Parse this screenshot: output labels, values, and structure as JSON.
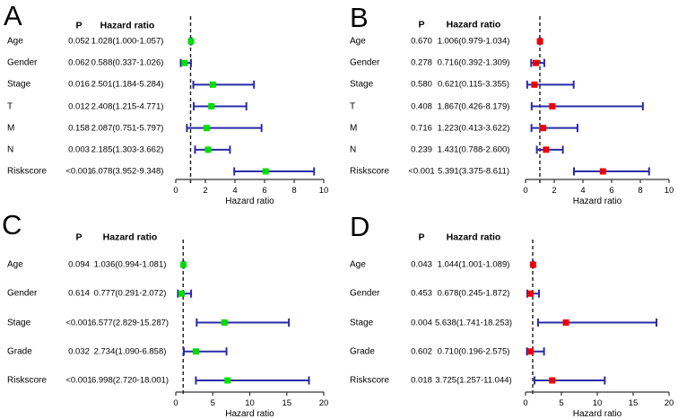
{
  "figure": {
    "background": "#ffffff",
    "text_color": "#000000",
    "error_bar_color": "#2a2aa8",
    "reference_line_color": "#1a1a1a",
    "axis_color": "#333333"
  },
  "chart_data": [
    {
      "type": "forest",
      "panel": "A",
      "marker_color": "#00dd00",
      "error_bar_color": "#2a2aa8",
      "col_headers": {
        "p": "P",
        "hr": "Hazard ratio"
      },
      "xlabel": "Hazard ratio",
      "xlim": [
        0,
        10
      ],
      "xticks": [
        0,
        2,
        4,
        6,
        8,
        10
      ],
      "reference_line": 1,
      "rows": [
        {
          "label": "Age",
          "p": "0.052",
          "hr_text": "1.028(1.000-1.057)",
          "hr": 1.028,
          "low": 1.0,
          "high": 1.057
        },
        {
          "label": "Gender",
          "p": "0.062",
          "hr_text": "0.588(0.337-1.026)",
          "hr": 0.588,
          "low": 0.337,
          "high": 1.026
        },
        {
          "label": "Stage",
          "p": "0.016",
          "hr_text": "2.501(1.184-5.284)",
          "hr": 2.501,
          "low": 1.184,
          "high": 5.284
        },
        {
          "label": "T",
          "p": "0.012",
          "hr_text": "2.408(1.215-4.771)",
          "hr": 2.408,
          "low": 1.215,
          "high": 4.771
        },
        {
          "label": "M",
          "p": "0.158",
          "hr_text": "2.087(0.751-5.797)",
          "hr": 2.087,
          "low": 0.751,
          "high": 5.797
        },
        {
          "label": "N",
          "p": "0.003",
          "hr_text": "2.185(1.303-3.662)",
          "hr": 2.185,
          "low": 1.303,
          "high": 3.662
        },
        {
          "label": "Riskscore",
          "p": "<0.001",
          "hr_text": "6.078(3.952-9.348)",
          "hr": 6.078,
          "low": 3.952,
          "high": 9.348
        }
      ]
    },
    {
      "type": "forest",
      "panel": "B",
      "marker_color": "#ee0000",
      "error_bar_color": "#2a2aa8",
      "col_headers": {
        "p": "P",
        "hr": "Hazard ratio"
      },
      "xlabel": "Hazard ratio",
      "xlim": [
        0,
        10
      ],
      "xticks": [
        0,
        2,
        4,
        6,
        8,
        10
      ],
      "reference_line": 1,
      "rows": [
        {
          "label": "Age",
          "p": "0.670",
          "hr_text": "1.006(0.979-1.034)",
          "hr": 1.006,
          "low": 0.979,
          "high": 1.034
        },
        {
          "label": "Gender",
          "p": "0.278",
          "hr_text": "0.716(0.392-1.309)",
          "hr": 0.716,
          "low": 0.392,
          "high": 1.309
        },
        {
          "label": "Stage",
          "p": "0.580",
          "hr_text": "0.621(0.115-3.355)",
          "hr": 0.621,
          "low": 0.115,
          "high": 3.355
        },
        {
          "label": "T",
          "p": "0.408",
          "hr_text": "1.867(0.426-8.179)",
          "hr": 1.867,
          "low": 0.426,
          "high": 8.179
        },
        {
          "label": "M",
          "p": "0.716",
          "hr_text": "1.223(0.413-3.622)",
          "hr": 1.223,
          "low": 0.413,
          "high": 3.622
        },
        {
          "label": "N",
          "p": "0.239",
          "hr_text": "1.431(0.788-2.600)",
          "hr": 1.431,
          "low": 0.788,
          "high": 2.6
        },
        {
          "label": "Riskscore",
          "p": "<0.001",
          "hr_text": "5.391(3.375-8.611)",
          "hr": 5.391,
          "low": 3.375,
          "high": 8.611
        }
      ]
    },
    {
      "type": "forest",
      "panel": "C",
      "marker_color": "#00dd00",
      "error_bar_color": "#2a2aa8",
      "col_headers": {
        "p": "P",
        "hr": "Hazard ratio"
      },
      "xlabel": "Hazard ratio",
      "xlim": [
        0,
        20
      ],
      "xticks": [
        0,
        5,
        10,
        15,
        20
      ],
      "reference_line": 1,
      "rows": [
        {
          "label": "Age",
          "p": "0.094",
          "hr_text": "1.036(0.994-1.081)",
          "hr": 1.036,
          "low": 0.994,
          "high": 1.081
        },
        {
          "label": "Gender",
          "p": "0.614",
          "hr_text": "0.777(0.291-2.072)",
          "hr": 0.777,
          "low": 0.291,
          "high": 2.072
        },
        {
          "label": "Stage",
          "p": "<0.001",
          "hr_text": "6.577(2.829-15.287)",
          "hr": 6.577,
          "low": 2.829,
          "high": 15.287
        },
        {
          "label": "Grade",
          "p": "0.032",
          "hr_text": "2.734(1.090-6.858)",
          "hr": 2.734,
          "low": 1.09,
          "high": 6.858
        },
        {
          "label": "Riskscore",
          "p": "<0.001",
          "hr_text": "6.998(2.720-18.001)",
          "hr": 6.998,
          "low": 2.72,
          "high": 18.001
        }
      ]
    },
    {
      "type": "forest",
      "panel": "D",
      "marker_color": "#ee0000",
      "error_bar_color": "#2a2aa8",
      "col_headers": {
        "p": "P",
        "hr": "Hazard ratio"
      },
      "xlabel": "Hazard ratio",
      "xlim": [
        0,
        20
      ],
      "xticks": [
        0,
        5,
        10,
        15,
        20
      ],
      "reference_line": 1,
      "rows": [
        {
          "label": "Age",
          "p": "0.043",
          "hr_text": "1.044(1.001-1.089)",
          "hr": 1.044,
          "low": 1.001,
          "high": 1.089
        },
        {
          "label": "Gender",
          "p": "0.453",
          "hr_text": "0.678(0.245-1.872)",
          "hr": 0.678,
          "low": 0.245,
          "high": 1.872
        },
        {
          "label": "Stage",
          "p": "0.004",
          "hr_text": "5.638(1.741-18.253)",
          "hr": 5.638,
          "low": 1.741,
          "high": 18.253
        },
        {
          "label": "Grade",
          "p": "0.602",
          "hr_text": "0.710(0.196-2.575)",
          "hr": 0.71,
          "low": 0.196,
          "high": 2.575
        },
        {
          "label": "Riskscore",
          "p": "0.018",
          "hr_text": "3.725(1.257-11.044)",
          "hr": 3.725,
          "low": 1.257,
          "high": 11.044
        }
      ]
    }
  ]
}
